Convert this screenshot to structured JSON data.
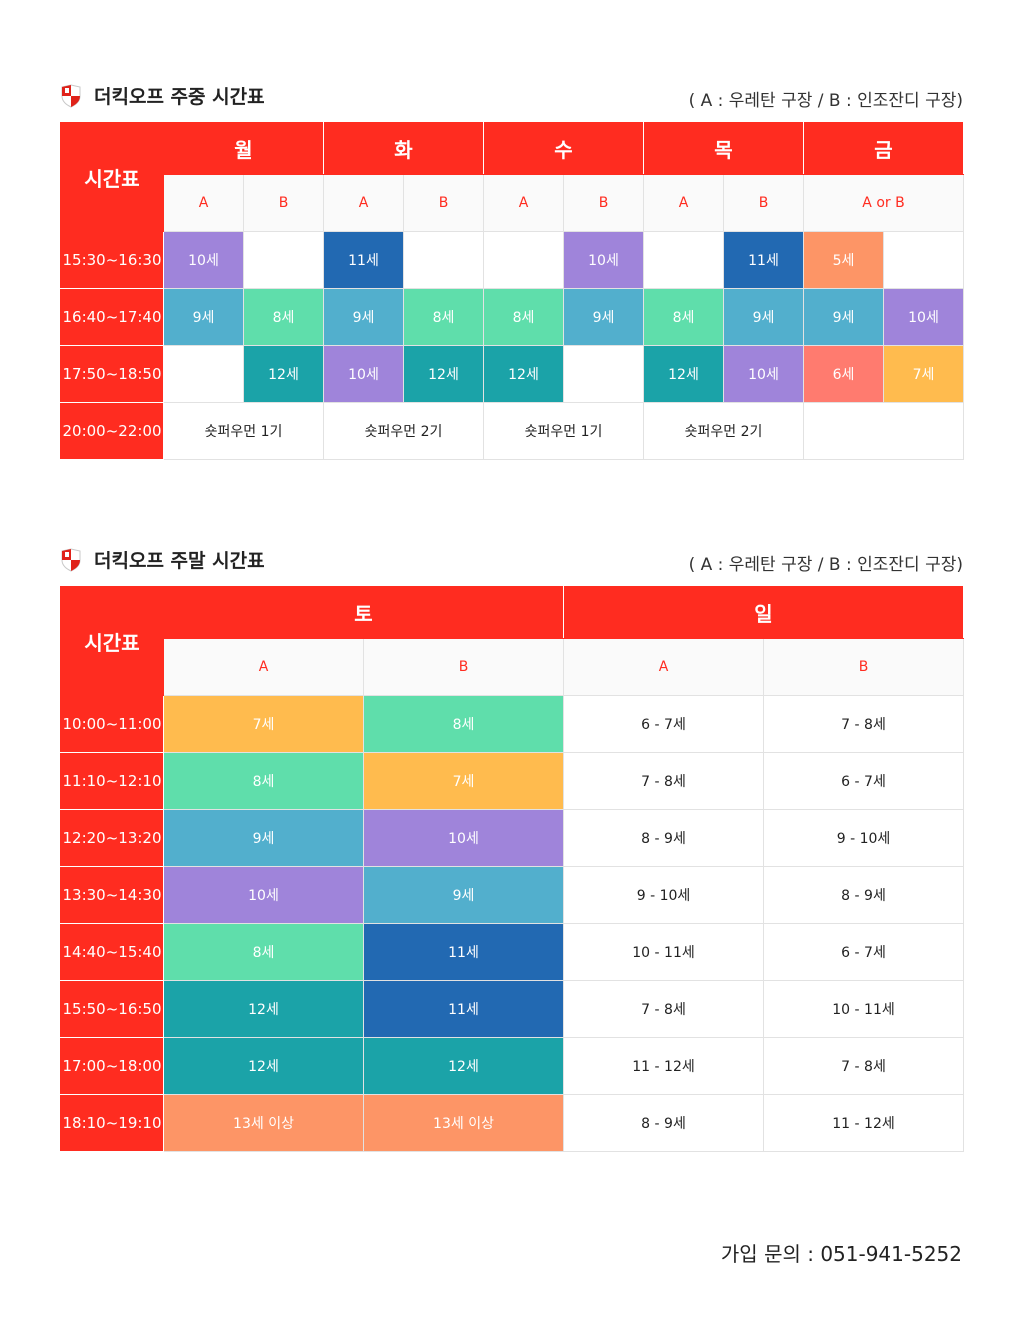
{
  "legend": "( A : 우레탄 구장  /  B : 인조잔디 구장)",
  "colors": {
    "header": "#ff2c20",
    "purple": "#9f84da",
    "navy": "#2269b2",
    "orange": "#fd9566",
    "sky": "#52afcd",
    "mint": "#5fdeab",
    "teal": "#1ba3a8",
    "salmon": "#ff7b6f",
    "amber": "#ffbb4e"
  },
  "weekday": {
    "title": "더킥오프 주중 시간표",
    "corner": "시간표",
    "days": [
      "월",
      "화",
      "수",
      "목",
      "금"
    ],
    "subs": [
      "A",
      "B",
      "A",
      "B",
      "A",
      "B",
      "A",
      "B",
      "A or B"
    ],
    "rows": [
      {
        "time": "15:30~16:30",
        "cells": [
          "10세",
          "",
          "11세",
          "",
          "",
          "10세",
          "",
          "11세",
          "5세",
          ""
        ]
      },
      {
        "time": "16:40~17:40",
        "cells": [
          "9세",
          "8세",
          "9세",
          "8세",
          "8세",
          "9세",
          "8세",
          "9세",
          "9세",
          "10세"
        ]
      },
      {
        "time": "17:50~18:50",
        "cells": [
          "",
          "12세",
          "10세",
          "12세",
          "12세",
          "",
          "12세",
          "10세",
          "6세",
          "7세"
        ]
      },
      {
        "time": "20:00~22:00",
        "cells": [
          "숏퍼우먼 1기",
          "숏퍼우먼 2기",
          "숏퍼우먼 1기",
          "숏퍼우먼 2기",
          ""
        ]
      }
    ]
  },
  "weekend": {
    "title": "더킥오프 주말 시간표",
    "corner": "시간표",
    "days": [
      "토",
      "일"
    ],
    "subs": [
      "A",
      "B",
      "A",
      "B"
    ],
    "rows": [
      {
        "time": "10:00~11:00",
        "cells": [
          "7세",
          "8세",
          "6 - 7세",
          "7 - 8세"
        ]
      },
      {
        "time": "11:10~12:10",
        "cells": [
          "8세",
          "7세",
          "7 - 8세",
          "6 - 7세"
        ]
      },
      {
        "time": "12:20~13:20",
        "cells": [
          "9세",
          "10세",
          "8 - 9세",
          "9 - 10세"
        ]
      },
      {
        "time": "13:30~14:30",
        "cells": [
          "10세",
          "9세",
          "9 - 10세",
          "8 - 9세"
        ]
      },
      {
        "time": "14:40~15:40",
        "cells": [
          "8세",
          "11세",
          "10 - 11세",
          "6 - 7세"
        ]
      },
      {
        "time": "15:50~16:50",
        "cells": [
          "12세",
          "11세",
          "7 - 8세",
          "10 - 11세"
        ]
      },
      {
        "time": "17:00~18:00",
        "cells": [
          "12세",
          "12세",
          "11 - 12세",
          "7 - 8세"
        ]
      },
      {
        "time": "18:10~19:10",
        "cells": [
          "13세 이상",
          "13세 이상",
          "8 - 9세",
          "11 - 12세"
        ]
      }
    ]
  },
  "contact": "가입 문의 : 051-941-5252"
}
